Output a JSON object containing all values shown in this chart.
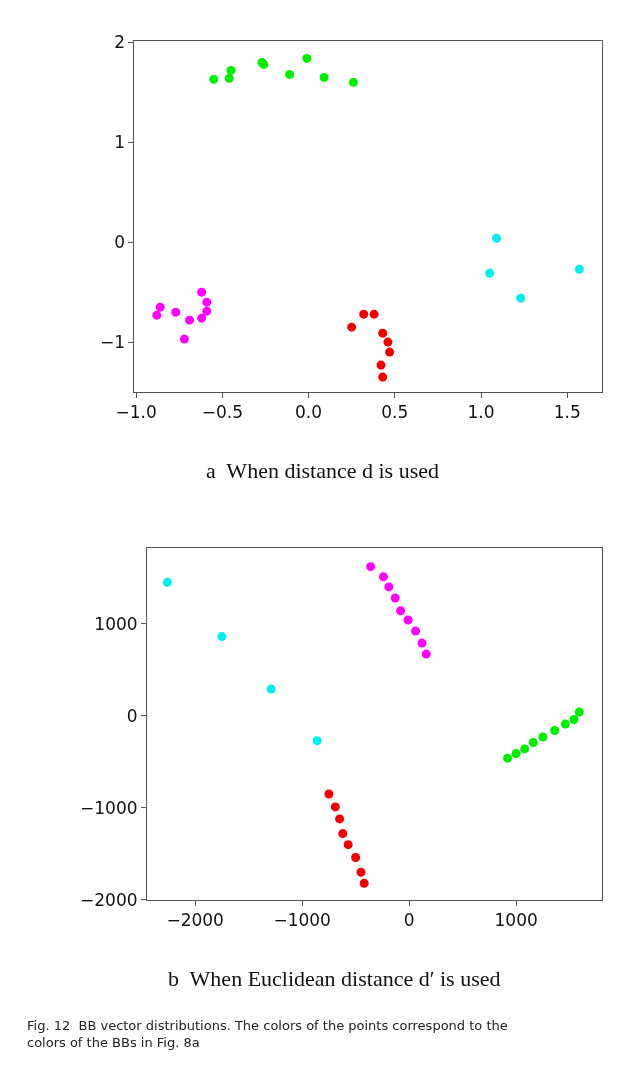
{
  "chart_data": [
    {
      "type": "scatter",
      "xlabel": "a  When distance d is used",
      "marker": "circle",
      "xlim": [
        -1.01,
        1.7
      ],
      "ylim": [
        -1.5,
        2.01
      ],
      "xticks": [
        {
          "value": -1.0,
          "label": "−1.0"
        },
        {
          "value": -0.5,
          "label": "−0.5"
        },
        {
          "value": 0,
          "label": "0.0"
        },
        {
          "value": 0.5,
          "label": "0.5"
        },
        {
          "value": 1.0,
          "label": "1.0"
        },
        {
          "value": 1.5,
          "label": "1.5"
        }
      ],
      "yticks": [
        {
          "value": -1,
          "label": "−1"
        },
        0,
        1,
        2
      ],
      "series": [
        {
          "color": "#00ee00",
          "x": [
            -0.55,
            -0.46,
            -0.45,
            -0.27,
            -0.26,
            -0.11,
            -0.01,
            0.09,
            0.26
          ],
          "values": [
            1.63,
            1.64,
            1.72,
            1.8,
            1.78,
            1.68,
            1.84,
            1.65,
            1.6
          ]
        },
        {
          "color": "#ff00ff",
          "x": [
            -0.88,
            -0.86,
            -0.77,
            -0.72,
            -0.69,
            -0.62,
            -0.62,
            -0.59,
            -0.59
          ],
          "values": [
            -0.73,
            -0.65,
            -0.7,
            -0.97,
            -0.78,
            -0.5,
            -0.76,
            -0.6,
            -0.69
          ]
        },
        {
          "color": "#ee0000",
          "x": [
            0.25,
            0.32,
            0.38,
            0.43,
            0.46,
            0.47,
            0.42,
            0.43
          ],
          "values": [
            -0.85,
            -0.72,
            -0.72,
            -0.91,
            -1.0,
            -1.1,
            -1.23,
            -1.35
          ]
        },
        {
          "color": "#00eeee",
          "x": [
            1.09,
            1.05,
            1.23,
            1.57
          ],
          "values": [
            0.04,
            -0.31,
            -0.56,
            -0.27
          ]
        }
      ]
    },
    {
      "type": "scatter",
      "xlabel": "b  When Euclidean distance d′ is used",
      "marker": "circle",
      "xlim": [
        -2450,
        1800
      ],
      "ylim": [
        -2000,
        1820
      ],
      "xticks": [
        {
          "value": -2000,
          "label": "−2000"
        },
        {
          "value": -1000,
          "label": "−1000"
        },
        0,
        1000
      ],
      "yticks": [
        {
          "value": -2000,
          "label": "−2000"
        },
        {
          "value": -1000,
          "label": "−1000"
        },
        0,
        1000
      ],
      "annotations": [
        "Fig. 12  BB vector distributions. The colors of the points correspond to the colors of the BBs in Fig. 8a"
      ],
      "series": [
        {
          "color": "#00eeee",
          "x": [
            -2260,
            -1750,
            -1290,
            -860
          ],
          "values": [
            1450,
            860,
            290,
            -270
          ]
        },
        {
          "color": "#ff00ff",
          "x": [
            -360,
            -240,
            -190,
            -130,
            -80,
            -10,
            60,
            120,
            160
          ],
          "values": [
            1620,
            1510,
            1400,
            1280,
            1140,
            1040,
            920,
            790,
            670
          ]
        },
        {
          "color": "#00ee00",
          "x": [
            920,
            1000,
            1080,
            1160,
            1250,
            1360,
            1460,
            1540,
            1590
          ],
          "values": [
            -460,
            -410,
            -360,
            -290,
            -230,
            -160,
            -90,
            -40,
            40
          ]
        },
        {
          "color": "#ee0000",
          "x": [
            -750,
            -690,
            -650,
            -620,
            -570,
            -500,
            -450,
            -420
          ],
          "values": [
            -850,
            -990,
            -1120,
            -1280,
            -1400,
            -1540,
            -1700,
            -1820
          ]
        }
      ]
    }
  ]
}
